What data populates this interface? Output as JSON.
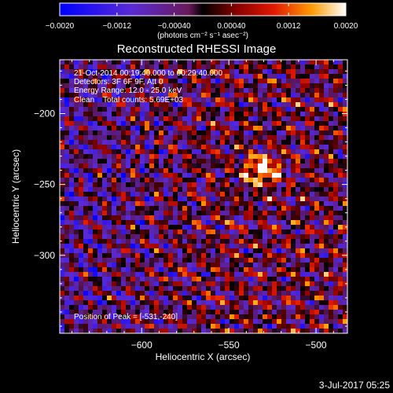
{
  "colorbar": {
    "min": -0.002,
    "max": 0.002,
    "tick_labels": [
      "−0.0020",
      "−0.0012",
      "−0.00040",
      "0.00040",
      "0.0012",
      "0.0020"
    ],
    "tick_values": [
      -0.002,
      -0.0012,
      -0.0004,
      0.0004,
      0.0012,
      0.002
    ],
    "unit_label": "(photons cm⁻² s⁻¹ asec⁻²)"
  },
  "chart_data": {
    "type": "heatmap",
    "title": "Reconstructed RHESSI Image",
    "xlabel": "Heliocentric X (arcsec)",
    "ylabel": "Heliocentric Y (arcsec)",
    "xlim": [
      -647,
      -482
    ],
    "ylim": [
      -355,
      -162
    ],
    "x_ticks": [
      -600,
      -550,
      -500
    ],
    "x_tick_labels": [
      "−600",
      "−550",
      "−500"
    ],
    "y_ticks": [
      -200,
      -250,
      -300
    ],
    "y_tick_labels": [
      "−200",
      "−250",
      "−300"
    ],
    "peak": [
      -531,
      -240
    ],
    "colormap": "rhessi-hot-with-negative-blue",
    "annotations": [
      "21-Oct-2014 00:19:40.000 to 00:29:40.000",
      "Detectors: 3F 6F 9F, Att 0",
      "Energy Range: 12.0 - 25.0 keV",
      "Clean    Total counts: 5.69E+03"
    ],
    "peak_label": "Position of Peak = [-531,-240]"
  },
  "footer": {
    "timestamp": "3-Jul-2017 05:25"
  },
  "colors": {
    "background": "#000000",
    "foreground": "#ffffff"
  }
}
